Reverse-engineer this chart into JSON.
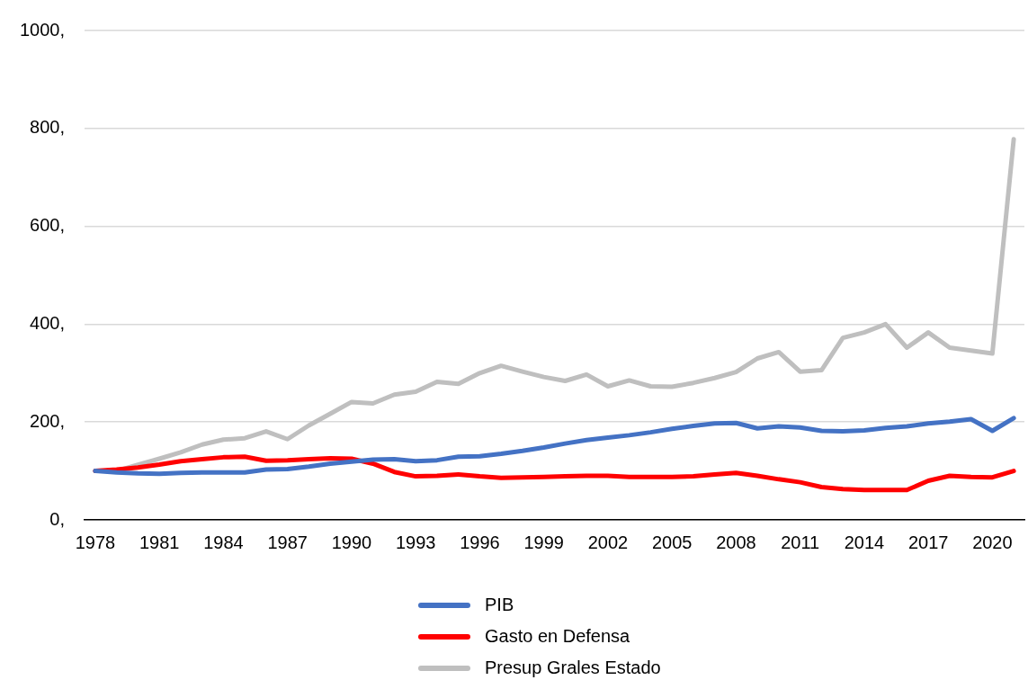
{
  "chart_data": {
    "type": "line",
    "categories": [
      "1978",
      null,
      null,
      "1981",
      null,
      null,
      "1984",
      null,
      null,
      "1987",
      null,
      null,
      "1990",
      null,
      null,
      "1993",
      null,
      null,
      "1996",
      null,
      null,
      "1999",
      null,
      null,
      "2002",
      null,
      null,
      "2005",
      null,
      null,
      "2008",
      null,
      null,
      "2011",
      null,
      null,
      "2014",
      null,
      null,
      "2017",
      null,
      null,
      "2020",
      null
    ],
    "series": [
      {
        "name": "PIB",
        "color": "#4472c4",
        "values": [
          100,
          97,
          95,
          94,
          96,
          97,
          97,
          97,
          103,
          104,
          109,
          115,
          119,
          123,
          124,
          120,
          122,
          129,
          130,
          135,
          141,
          148,
          156,
          163,
          168,
          173,
          179,
          186,
          192,
          197,
          198,
          187,
          191,
          189,
          182,
          181,
          183,
          188,
          191,
          197,
          201,
          206,
          182,
          208
        ]
      },
      {
        "name": "Gasto en Defensa",
        "color": "#ff0000",
        "values": [
          100,
          103,
          107,
          113,
          120,
          124,
          128,
          129,
          121,
          122,
          124,
          126,
          125,
          115,
          98,
          89,
          90,
          93,
          89,
          86,
          87,
          88,
          89,
          90,
          90,
          88,
          88,
          88,
          89,
          93,
          96,
          90,
          83,
          77,
          67,
          63,
          61,
          61,
          61,
          80,
          90,
          88,
          87,
          100
        ]
      },
      {
        "name": "Presup Grales Estado",
        "color": "#bfbfbf",
        "values": [
          100,
          100,
          113,
          125,
          138,
          154,
          164,
          167,
          181,
          165,
          193,
          217,
          241,
          238,
          256,
          262,
          282,
          278,
          300,
          315,
          303,
          292,
          284,
          297,
          273,
          285,
          273,
          272,
          280,
          290,
          302,
          330,
          343,
          303,
          306,
          372,
          383,
          400,
          352,
          383,
          352,
          346,
          340,
          778
        ]
      }
    ],
    "ylim": [
      0,
      1000
    ],
    "yticks": [
      {
        "value": 0,
        "label": "0,"
      },
      {
        "value": 200,
        "label": "200,"
      },
      {
        "value": 400,
        "label": "400,"
      },
      {
        "value": 600,
        "label": "600,"
      },
      {
        "value": 800,
        "label": "800,"
      },
      {
        "value": 1000,
        "label": "1000,"
      }
    ],
    "grid": "y",
    "legend": "bottom",
    "marker": "none",
    "line_style": "solid"
  }
}
